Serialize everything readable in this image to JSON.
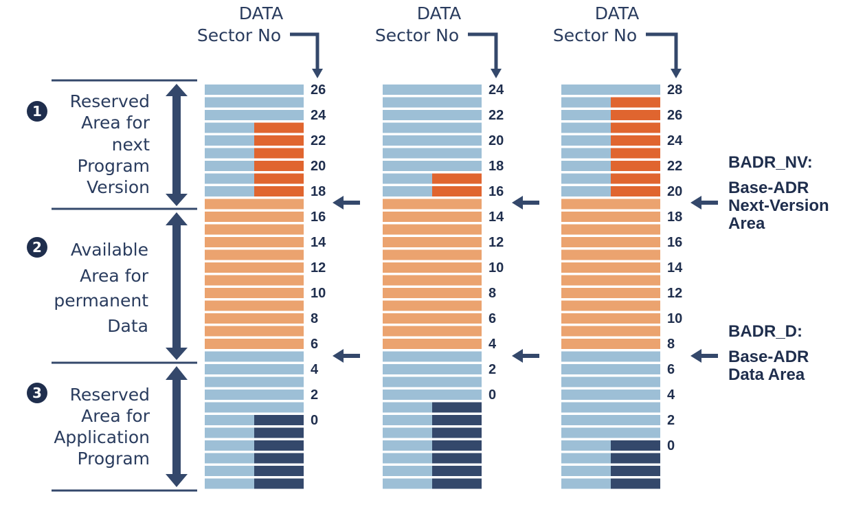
{
  "colors": {
    "light_blue": "#9dbfd6",
    "orange": "#e0652f",
    "peach": "#eba36f",
    "navy": "#34486b",
    "text": "#1f2e4d"
  },
  "columns": [
    {
      "header_line1": "DATA",
      "header_line2": "Sector No",
      "labels": [
        "26",
        "24",
        "22",
        "20",
        "18",
        "16",
        "14",
        "12",
        "10",
        "8",
        "6",
        "4",
        "2",
        "0"
      ],
      "rows": [
        "blue",
        "blue",
        "blue",
        "orange",
        "orange",
        "orange",
        "orange",
        "orange",
        "orange",
        "peach",
        "peach",
        "peach",
        "peach",
        "peach",
        "peach",
        "peach",
        "peach",
        "peach",
        "peach",
        "peach",
        "peach",
        "blue",
        "blue",
        "blue",
        "blue",
        "blue",
        "navy",
        "navy",
        "navy",
        "navy",
        "navy",
        "navy"
      ]
    },
    {
      "header_line1": "DATA",
      "header_line2": "Sector No",
      "labels": [
        "24",
        "22",
        "20",
        "18",
        "16",
        "14",
        "12",
        "10",
        "8",
        "6",
        "4",
        "2",
        "0"
      ],
      "rows": [
        "blue",
        "blue",
        "blue",
        "blue",
        "blue",
        "blue",
        "blue",
        "orange",
        "orange",
        "peach",
        "peach",
        "peach",
        "peach",
        "peach",
        "peach",
        "peach",
        "peach",
        "peach",
        "peach",
        "peach",
        "peach",
        "blue",
        "blue",
        "blue",
        "blue",
        "navy",
        "navy",
        "navy",
        "navy",
        "navy",
        "navy",
        "navy"
      ]
    },
    {
      "header_line1": "DATA",
      "header_line2": "Sector No",
      "labels": [
        "28",
        "26",
        "24",
        "22",
        "20",
        "18",
        "16",
        "14",
        "12",
        "10",
        "8",
        "6",
        "4",
        "2",
        "0"
      ],
      "rows": [
        "blue",
        "orange",
        "orange",
        "orange",
        "orange",
        "orange",
        "orange",
        "orange",
        "orange",
        "peach",
        "peach",
        "peach",
        "peach",
        "peach",
        "peach",
        "peach",
        "peach",
        "peach",
        "peach",
        "peach",
        "peach",
        "blue",
        "blue",
        "blue",
        "blue",
        "blue",
        "blue",
        "blue",
        "navy",
        "navy",
        "navy",
        "navy"
      ]
    }
  ],
  "regions": [
    {
      "badge": "1",
      "lines": [
        "Reserved",
        "Area for",
        "next",
        "Program",
        "Version"
      ]
    },
    {
      "badge": "2",
      "lines": [
        "Available",
        "Area for",
        "permanent",
        "Data"
      ]
    },
    {
      "badge": "3",
      "lines": [
        "Reserved",
        "Area for",
        "Application",
        "Program"
      ]
    }
  ],
  "annotations": {
    "nv_title": "BADR_NV:",
    "nv_lines": [
      "Base-ADR",
      "Next-Version",
      "Area"
    ],
    "d_title": "BADR_D:",
    "d_lines": [
      "Base-ADR",
      "Data Area"
    ]
  }
}
